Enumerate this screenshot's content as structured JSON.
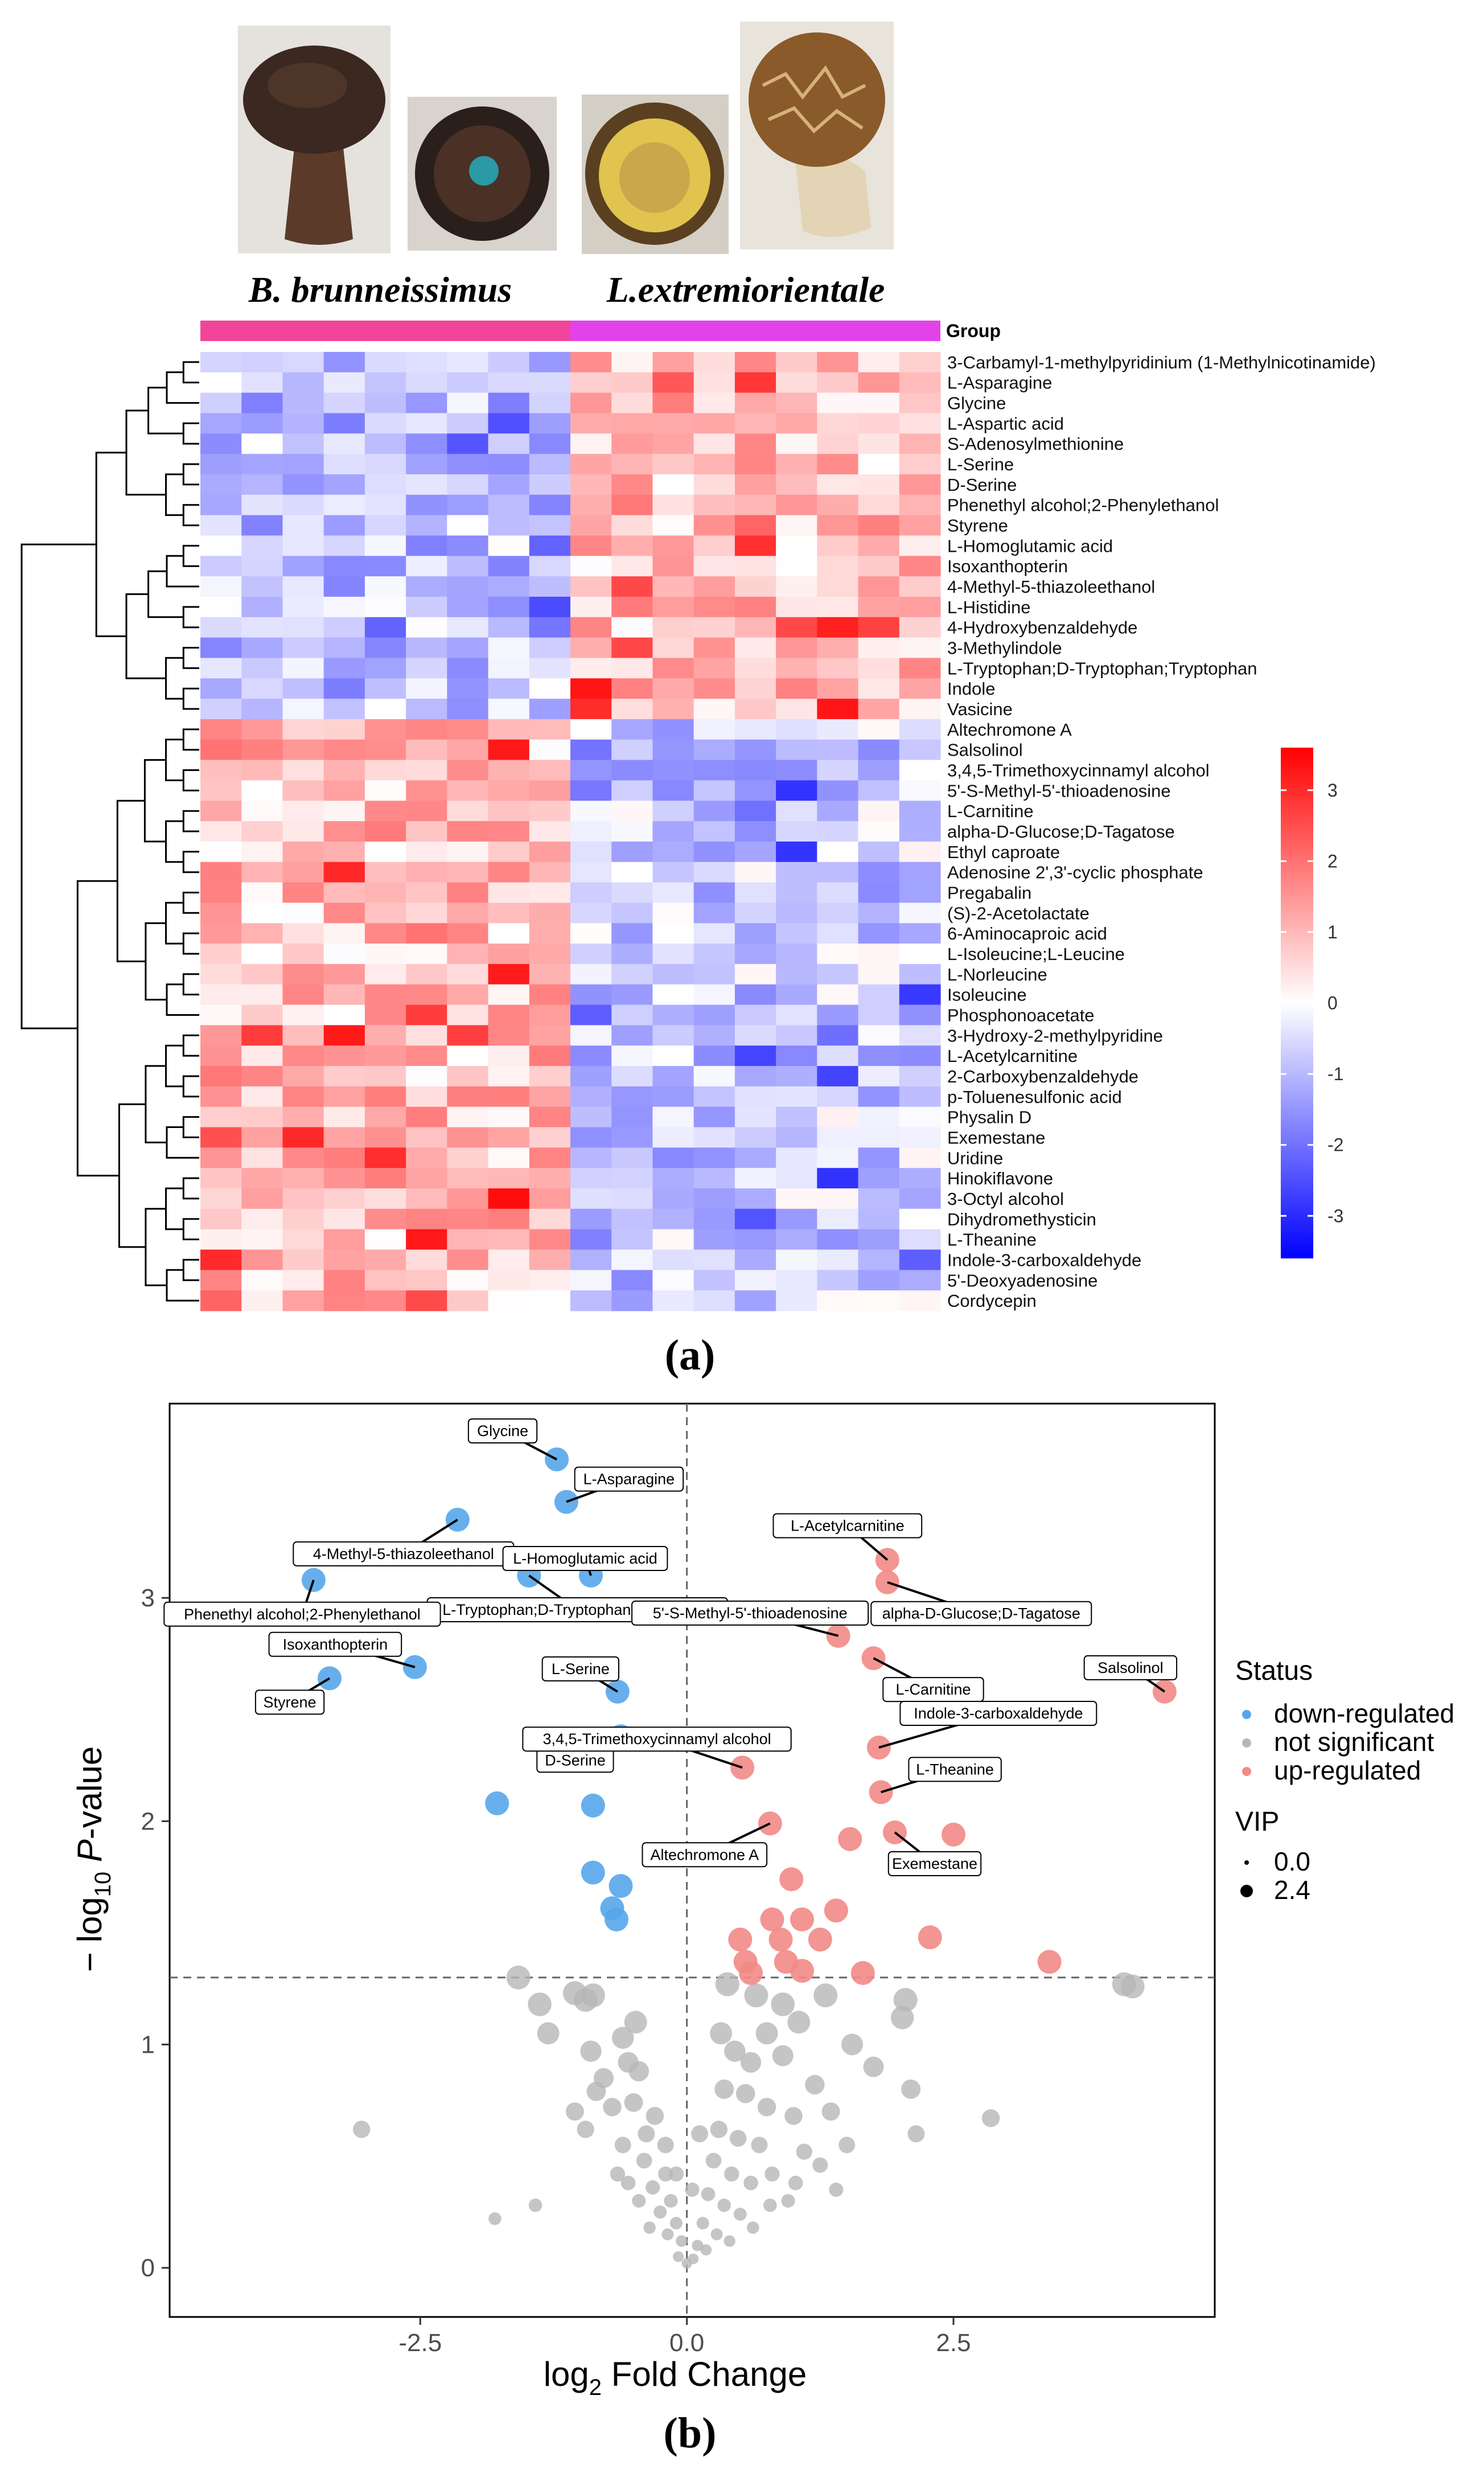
{
  "images": [
    {
      "name": "mushroom-brown-cap-stem",
      "colors": [
        "#3b2a22",
        "#6a4a36",
        "#d9d4cd"
      ]
    },
    {
      "name": "mushroom-dark-cap-underside",
      "colors": [
        "#2b1f1b",
        "#5b3a2a",
        "#2a9aa5"
      ]
    },
    {
      "name": "mushroom-yellow-pore-surface",
      "colors": [
        "#caa74a",
        "#e1c34f",
        "#5a4020"
      ]
    },
    {
      "name": "mushroom-cracked-cap-stem",
      "colors": [
        "#b48a47",
        "#5a3a1e",
        "#e8ddc8"
      ]
    }
  ],
  "species_labels": [
    "B. brunneissimus",
    "L.extremiorientale"
  ],
  "panel_labels": [
    "(a)",
    "(b)"
  ],
  "chart_data": [
    {
      "type": "heatmap",
      "group_header": "Group",
      "groups": [
        {
          "name": "B. brunneissimus",
          "color": "#f2449b",
          "n_samples": 9
        },
        {
          "name": "L.extremiorientale",
          "color": "#e342e8",
          "n_samples": 9
        }
      ],
      "rows": [
        "3-Carbamyl-1-methylpyridinium (1-Methylnicotinamide)",
        "L-Asparagine",
        "Glycine",
        "L-Aspartic acid",
        "S-Adenosylmethionine",
        "L-Serine",
        "D-Serine",
        "Phenethyl alcohol;2-Phenylethanol",
        "Styrene",
        "L-Homoglutamic acid",
        "Isoxanthopterin",
        "4-Methyl-5-thiazoleethanol",
        "L-Histidine",
        "4-Hydroxybenzaldehyde",
        "3-Methylindole",
        "L-Tryptophan;D-Tryptophan;Tryptophan",
        "Indole",
        "Vasicine",
        "Altechromone A",
        "Salsolinol",
        "3,4,5-Trimethoxycinnamyl alcohol",
        "5'-S-Methyl-5'-thioadenosine",
        "L-Carnitine",
        "alpha-D-Glucose;D-Tagatose",
        "Ethyl caproate",
        "Adenosine 2',3'-cyclic phosphate",
        "Pregabalin",
        "(S)-2-Acetolactate",
        "6-Aminocaproic acid",
        "L-Isoleucine;L-Leucine",
        "L-Norleucine",
        "Isoleucine",
        "Phosphonoacetate",
        "3-Hydroxy-2-methylpyridine",
        "L-Acetylcarnitine",
        "2-Carboxybenzaldehyde",
        "p-Toluenesulfonic acid",
        "Physalin D",
        "Exemestane",
        "Uridine",
        "Hinokiflavone",
        "3-Octyl alcohol",
        "Dihydromethysticin",
        "L-Theanine",
        "Indole-3-carboxaldehyde",
        "5'-Deoxyadenosine",
        "Cordycepin"
      ],
      "n_columns": 18,
      "n_up_rows_in_second_group": 18,
      "colorbar": {
        "min": -3.6,
        "max": 3.6,
        "ticks": [
          3,
          2,
          1,
          0,
          -1,
          -2,
          -3
        ],
        "colors": {
          "low": "#0000ff",
          "mid": "#ffffff",
          "high": "#ff0000"
        }
      }
    },
    {
      "type": "scatter",
      "xlabel": "log",
      "xlabel_sub": "2",
      "xlabel_rest": " Fold Change",
      "ylabel_prefix": "− log",
      "ylabel_sub": "10",
      "ylabel_italic": "P",
      "ylabel_rest": "-value",
      "xlim": [
        -4.85,
        4.95
      ],
      "ylim": [
        -0.22,
        3.87
      ],
      "xticks": [
        -2.5,
        0.0,
        2.5
      ],
      "xtick_labels": [
        "-2.5",
        "0.0",
        "2.5"
      ],
      "yticks": [
        0,
        1,
        2,
        3
      ],
      "ytick_labels": [
        "0",
        "1",
        "2",
        "3"
      ],
      "thresholds": {
        "p_line": 1.3,
        "fc_line": 0
      },
      "legend": {
        "status_title": "Status",
        "status_items": [
          {
            "label": "down-regulated",
            "color": "#56a6ea"
          },
          {
            "label": "not significant",
            "color": "#b7b7b7"
          },
          {
            "label": "up-regulated",
            "color": "#f28a86"
          }
        ],
        "vip_title": "VIP",
        "vip_items": [
          {
            "label": "0.0",
            "radius": 4
          },
          {
            "label": "2.4",
            "radius": 11
          }
        ]
      },
      "colors": {
        "down": "#56a6ea",
        "ns": "#b7b7b7",
        "up": "#f28a86"
      },
      "down_points": [
        {
          "x": -1.22,
          "y": 3.62,
          "label": "Glycine"
        },
        {
          "x": -1.13,
          "y": 3.43,
          "label": "L-Asparagine"
        },
        {
          "x": -2.15,
          "y": 3.35,
          "label": "4-Methyl-5-thiazoleethanol"
        },
        {
          "x": -0.9,
          "y": 3.1,
          "label": "L-Homoglutamic acid"
        },
        {
          "x": -1.48,
          "y": 3.1,
          "label": "L-Tryptophan;D-Tryptophan;Tryptophan"
        },
        {
          "x": -3.5,
          "y": 3.08,
          "label": "Phenethyl alcohol;2-Phenylethanol"
        },
        {
          "x": -2.55,
          "y": 2.69,
          "label": "Isoxanthopterin"
        },
        {
          "x": -3.35,
          "y": 2.64,
          "label": "Styrene"
        },
        {
          "x": -0.65,
          "y": 2.58,
          "label": "L-Serine"
        },
        {
          "x": -0.62,
          "y": 2.38,
          "label": "D-Serine"
        },
        {
          "x": -1.78,
          "y": 2.08
        },
        {
          "x": -0.88,
          "y": 2.07
        },
        {
          "x": -0.88,
          "y": 1.77
        },
        {
          "x": -0.62,
          "y": 1.71
        },
        {
          "x": -0.7,
          "y": 1.61
        },
        {
          "x": -0.66,
          "y": 1.56
        }
      ],
      "up_points": [
        {
          "x": 1.88,
          "y": 3.17,
          "label": "L-Acetylcarnitine"
        },
        {
          "x": 1.88,
          "y": 3.07,
          "label": "alpha-D-Glucose;D-Tagatose"
        },
        {
          "x": 1.42,
          "y": 2.83,
          "label": "5'-S-Methyl-5'-thioadenosine"
        },
        {
          "x": 4.48,
          "y": 2.58,
          "label": "Salsolinol"
        },
        {
          "x": 1.75,
          "y": 2.73,
          "label": "L-Carnitine"
        },
        {
          "x": 1.8,
          "y": 2.33,
          "label": "Indole-3-carboxaldehyde"
        },
        {
          "x": 0.52,
          "y": 2.24,
          "label": "3,4,5-Trimethoxycinnamyl alcohol"
        },
        {
          "x": 1.82,
          "y": 2.13,
          "label": "L-Theanine"
        },
        {
          "x": 0.78,
          "y": 1.99,
          "label": "Altechromone A"
        },
        {
          "x": 1.95,
          "y": 1.95,
          "label": "Exemestane"
        },
        {
          "x": 2.5,
          "y": 1.94
        },
        {
          "x": 1.53,
          "y": 1.92
        },
        {
          "x": 0.98,
          "y": 1.74
        },
        {
          "x": 1.4,
          "y": 1.6
        },
        {
          "x": 1.08,
          "y": 1.56
        },
        {
          "x": 0.8,
          "y": 1.56
        },
        {
          "x": 2.28,
          "y": 1.48
        },
        {
          "x": 0.5,
          "y": 1.47
        },
        {
          "x": 0.88,
          "y": 1.47
        },
        {
          "x": 1.25,
          "y": 1.47
        },
        {
          "x": 0.55,
          "y": 1.37
        },
        {
          "x": 0.93,
          "y": 1.37
        },
        {
          "x": 3.4,
          "y": 1.37
        },
        {
          "x": 0.6,
          "y": 1.32
        },
        {
          "x": 1.08,
          "y": 1.33
        },
        {
          "x": 1.65,
          "y": 1.32
        }
      ],
      "ns_points": [
        {
          "x": -1.58,
          "y": 1.3
        },
        {
          "x": -1.38,
          "y": 1.18
        },
        {
          "x": -1.05,
          "y": 1.23
        },
        {
          "x": -0.95,
          "y": 1.2
        },
        {
          "x": -0.88,
          "y": 1.22
        },
        {
          "x": -1.3,
          "y": 1.05
        },
        {
          "x": -0.6,
          "y": 1.03
        },
        {
          "x": -0.9,
          "y": 0.97
        },
        {
          "x": -0.45,
          "y": 0.88
        },
        {
          "x": -0.55,
          "y": 0.92
        },
        {
          "x": -0.85,
          "y": 0.79
        },
        {
          "x": -0.7,
          "y": 0.72
        },
        {
          "x": -0.5,
          "y": 0.74
        },
        {
          "x": -0.38,
          "y": 0.6
        },
        {
          "x": -0.95,
          "y": 0.62
        },
        {
          "x": -0.6,
          "y": 0.55
        },
        {
          "x": -0.4,
          "y": 0.48
        },
        {
          "x": -0.2,
          "y": 0.42
        },
        {
          "x": -0.32,
          "y": 0.36
        },
        {
          "x": -0.55,
          "y": 0.38
        },
        {
          "x": -0.15,
          "y": 0.3
        },
        {
          "x": -0.25,
          "y": 0.25
        },
        {
          "x": -0.1,
          "y": 0.2
        },
        {
          "x": -0.05,
          "y": 0.12
        },
        {
          "x": -0.18,
          "y": 0.15
        },
        {
          "x": -0.08,
          "y": 0.05
        },
        {
          "x": 0.0,
          "y": 0.02
        },
        {
          "x": -0.45,
          "y": 0.3
        },
        {
          "x": -0.65,
          "y": 0.42
        },
        {
          "x": -1.8,
          "y": 0.22
        },
        {
          "x": -1.42,
          "y": 0.28
        },
        {
          "x": -3.05,
          "y": 0.62
        },
        {
          "x": -0.3,
          "y": 0.68
        },
        {
          "x": -0.48,
          "y": 1.1
        },
        {
          "x": -0.78,
          "y": 0.85
        },
        {
          "x": -1.05,
          "y": 0.7
        },
        {
          "x": 0.38,
          "y": 1.27
        },
        {
          "x": 0.65,
          "y": 1.22
        },
        {
          "x": 0.9,
          "y": 1.18
        },
        {
          "x": 1.3,
          "y": 1.22
        },
        {
          "x": 2.05,
          "y": 1.2
        },
        {
          "x": 2.02,
          "y": 1.12
        },
        {
          "x": 0.75,
          "y": 1.05
        },
        {
          "x": 1.05,
          "y": 1.1
        },
        {
          "x": 1.55,
          "y": 1.0
        },
        {
          "x": 0.45,
          "y": 0.97
        },
        {
          "x": 0.6,
          "y": 0.92
        },
        {
          "x": 0.9,
          "y": 0.95
        },
        {
          "x": 1.2,
          "y": 0.82
        },
        {
          "x": 0.35,
          "y": 0.8
        },
        {
          "x": 0.55,
          "y": 0.78
        },
        {
          "x": 0.75,
          "y": 0.72
        },
        {
          "x": 1.0,
          "y": 0.68
        },
        {
          "x": 1.35,
          "y": 0.7
        },
        {
          "x": 2.1,
          "y": 0.8
        },
        {
          "x": 0.3,
          "y": 0.62
        },
        {
          "x": 0.48,
          "y": 0.58
        },
        {
          "x": 0.68,
          "y": 0.55
        },
        {
          "x": 1.1,
          "y": 0.52
        },
        {
          "x": 1.25,
          "y": 0.46
        },
        {
          "x": 0.25,
          "y": 0.48
        },
        {
          "x": 0.42,
          "y": 0.42
        },
        {
          "x": 0.6,
          "y": 0.38
        },
        {
          "x": 0.8,
          "y": 0.42
        },
        {
          "x": 1.02,
          "y": 0.38
        },
        {
          "x": 0.2,
          "y": 0.33
        },
        {
          "x": 0.35,
          "y": 0.28
        },
        {
          "x": 0.5,
          "y": 0.24
        },
        {
          "x": 0.15,
          "y": 0.2
        },
        {
          "x": 0.28,
          "y": 0.15
        },
        {
          "x": 0.1,
          "y": 0.1
        },
        {
          "x": 0.06,
          "y": 0.04
        },
        {
          "x": 0.18,
          "y": 0.08
        },
        {
          "x": 0.62,
          "y": 0.18
        },
        {
          "x": 0.78,
          "y": 0.28
        },
        {
          "x": 1.5,
          "y": 0.55
        },
        {
          "x": 2.15,
          "y": 0.6
        },
        {
          "x": 2.85,
          "y": 0.67
        },
        {
          "x": 4.1,
          "y": 1.27
        },
        {
          "x": 4.18,
          "y": 1.26
        },
        {
          "x": 0.95,
          "y": 0.3
        },
        {
          "x": 0.32,
          "y": 1.05
        },
        {
          "x": -0.2,
          "y": 0.55
        },
        {
          "x": 0.12,
          "y": 0.6
        },
        {
          "x": -0.1,
          "y": 0.42
        },
        {
          "x": 0.05,
          "y": 0.35
        },
        {
          "x": 1.75,
          "y": 0.9
        },
        {
          "x": 1.4,
          "y": 0.35
        },
        {
          "x": -0.35,
          "y": 0.18
        },
        {
          "x": 0.4,
          "y": 0.12
        }
      ]
    }
  ]
}
